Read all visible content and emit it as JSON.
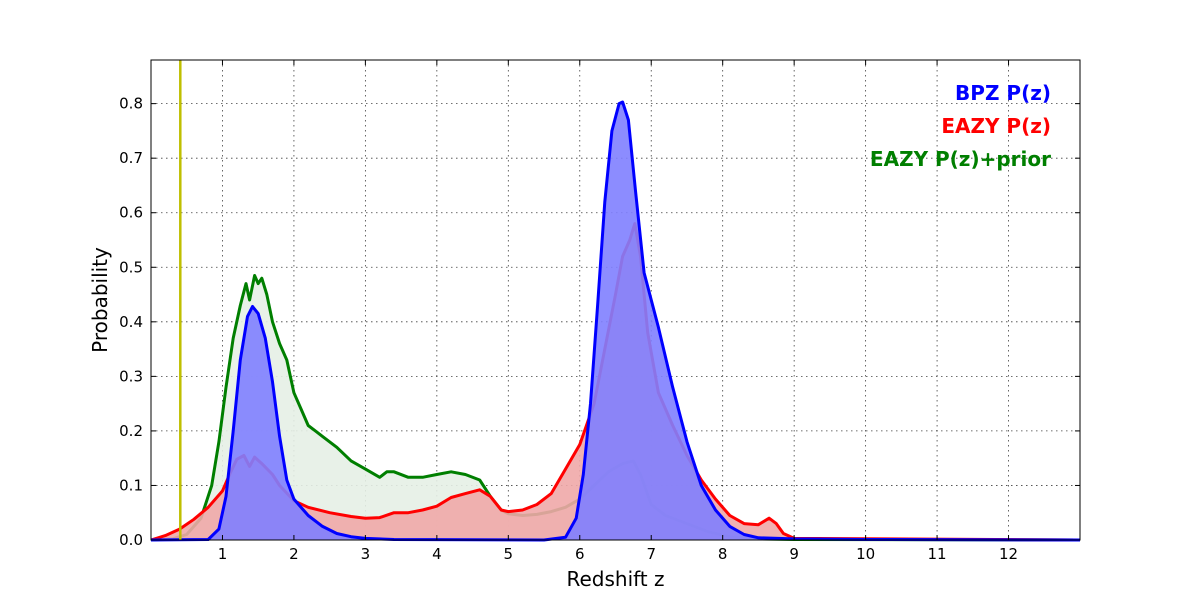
{
  "chart_data": {
    "type": "area",
    "xlabel": "Redshift z",
    "ylabel": "Probability",
    "xlim": [
      0,
      13
    ],
    "ylim": [
      0,
      0.88
    ],
    "x_ticks": [
      1,
      2,
      3,
      4,
      5,
      6,
      7,
      8,
      9,
      10,
      11,
      12
    ],
    "y_ticks": [
      0.0,
      0.1,
      0.2,
      0.3,
      0.4,
      0.5,
      0.6,
      0.7,
      0.8
    ],
    "grid": true,
    "legend_position": "top-right",
    "vline": {
      "x": 0.41,
      "color": "#bfbf00"
    },
    "series": [
      {
        "name": "EAZY P(z)+prior",
        "color": "#007f00",
        "fill": "#e5f0e5",
        "points": [
          [
            0,
            0
          ],
          [
            0.3,
            0.002
          ],
          [
            0.5,
            0.01
          ],
          [
            0.7,
            0.04
          ],
          [
            0.85,
            0.1
          ],
          [
            0.95,
            0.18
          ],
          [
            1.05,
            0.28
          ],
          [
            1.15,
            0.37
          ],
          [
            1.25,
            0.43
          ],
          [
            1.33,
            0.47
          ],
          [
            1.38,
            0.44
          ],
          [
            1.45,
            0.485
          ],
          [
            1.5,
            0.47
          ],
          [
            1.55,
            0.48
          ],
          [
            1.62,
            0.45
          ],
          [
            1.7,
            0.4
          ],
          [
            1.8,
            0.36
          ],
          [
            1.9,
            0.33
          ],
          [
            2.0,
            0.27
          ],
          [
            2.1,
            0.24
          ],
          [
            2.2,
            0.21
          ],
          [
            2.3,
            0.2
          ],
          [
            2.4,
            0.19
          ],
          [
            2.6,
            0.17
          ],
          [
            2.8,
            0.145
          ],
          [
            3.0,
            0.13
          ],
          [
            3.2,
            0.115
          ],
          [
            3.3,
            0.125
          ],
          [
            3.4,
            0.125
          ],
          [
            3.6,
            0.115
          ],
          [
            3.8,
            0.115
          ],
          [
            4.0,
            0.12
          ],
          [
            4.2,
            0.125
          ],
          [
            4.4,
            0.12
          ],
          [
            4.6,
            0.11
          ],
          [
            4.75,
            0.08
          ],
          [
            4.9,
            0.055
          ],
          [
            5.0,
            0.048
          ],
          [
            5.2,
            0.045
          ],
          [
            5.4,
            0.047
          ],
          [
            5.6,
            0.052
          ],
          [
            5.8,
            0.06
          ],
          [
            6.0,
            0.075
          ],
          [
            6.2,
            0.1
          ],
          [
            6.4,
            0.125
          ],
          [
            6.6,
            0.14
          ],
          [
            6.75,
            0.145
          ],
          [
            6.85,
            0.12
          ],
          [
            7.0,
            0.065
          ],
          [
            7.2,
            0.045
          ],
          [
            7.5,
            0.03
          ],
          [
            7.8,
            0.015
          ],
          [
            8.1,
            0.006
          ],
          [
            8.5,
            0.002
          ],
          [
            9.0,
            0.001
          ],
          [
            13,
            0
          ]
        ]
      },
      {
        "name": "EAZY P(z)",
        "color": "#ff0000",
        "fill": "#f0a8a8",
        "points": [
          [
            0,
            0
          ],
          [
            0.2,
            0.008
          ],
          [
            0.4,
            0.02
          ],
          [
            0.6,
            0.038
          ],
          [
            0.8,
            0.06
          ],
          [
            1.0,
            0.09
          ],
          [
            1.1,
            0.12
          ],
          [
            1.2,
            0.148
          ],
          [
            1.3,
            0.155
          ],
          [
            1.38,
            0.135
          ],
          [
            1.45,
            0.152
          ],
          [
            1.55,
            0.14
          ],
          [
            1.7,
            0.12
          ],
          [
            1.8,
            0.1
          ],
          [
            2.0,
            0.072
          ],
          [
            2.2,
            0.06
          ],
          [
            2.5,
            0.05
          ],
          [
            2.8,
            0.043
          ],
          [
            3.0,
            0.04
          ],
          [
            3.2,
            0.041
          ],
          [
            3.4,
            0.05
          ],
          [
            3.6,
            0.05
          ],
          [
            3.8,
            0.055
          ],
          [
            4.0,
            0.062
          ],
          [
            4.2,
            0.078
          ],
          [
            4.4,
            0.085
          ],
          [
            4.6,
            0.092
          ],
          [
            4.75,
            0.08
          ],
          [
            4.9,
            0.055
          ],
          [
            5.0,
            0.052
          ],
          [
            5.2,
            0.055
          ],
          [
            5.4,
            0.065
          ],
          [
            5.6,
            0.085
          ],
          [
            5.8,
            0.13
          ],
          [
            6.0,
            0.175
          ],
          [
            6.2,
            0.25
          ],
          [
            6.35,
            0.35
          ],
          [
            6.5,
            0.45
          ],
          [
            6.6,
            0.52
          ],
          [
            6.7,
            0.55
          ],
          [
            6.77,
            0.58
          ],
          [
            6.85,
            0.52
          ],
          [
            6.95,
            0.38
          ],
          [
            7.1,
            0.27
          ],
          [
            7.3,
            0.21
          ],
          [
            7.5,
            0.155
          ],
          [
            7.7,
            0.11
          ],
          [
            7.9,
            0.075
          ],
          [
            8.1,
            0.045
          ],
          [
            8.3,
            0.03
          ],
          [
            8.5,
            0.028
          ],
          [
            8.65,
            0.04
          ],
          [
            8.75,
            0.03
          ],
          [
            8.85,
            0.012
          ],
          [
            9.0,
            0.003
          ],
          [
            13,
            0
          ]
        ]
      },
      {
        "name": "BPZ P(z)",
        "color": "#0000ff",
        "fill": "#7f7fff",
        "points": [
          [
            0,
            0
          ],
          [
            0.8,
            0.001
          ],
          [
            0.95,
            0.02
          ],
          [
            1.05,
            0.08
          ],
          [
            1.15,
            0.2
          ],
          [
            1.25,
            0.33
          ],
          [
            1.35,
            0.41
          ],
          [
            1.42,
            0.428
          ],
          [
            1.5,
            0.415
          ],
          [
            1.6,
            0.37
          ],
          [
            1.7,
            0.29
          ],
          [
            1.8,
            0.19
          ],
          [
            1.9,
            0.11
          ],
          [
            2.0,
            0.075
          ],
          [
            2.2,
            0.045
          ],
          [
            2.4,
            0.025
          ],
          [
            2.6,
            0.012
          ],
          [
            2.8,
            0.006
          ],
          [
            3.0,
            0.003
          ],
          [
            3.4,
            0.001
          ],
          [
            5.5,
            0
          ],
          [
            5.8,
            0.005
          ],
          [
            5.95,
            0.04
          ],
          [
            6.05,
            0.12
          ],
          [
            6.15,
            0.25
          ],
          [
            6.25,
            0.43
          ],
          [
            6.35,
            0.62
          ],
          [
            6.45,
            0.75
          ],
          [
            6.55,
            0.8
          ],
          [
            6.6,
            0.803
          ],
          [
            6.68,
            0.77
          ],
          [
            6.78,
            0.64
          ],
          [
            6.9,
            0.49
          ],
          [
            7.1,
            0.39
          ],
          [
            7.3,
            0.28
          ],
          [
            7.5,
            0.18
          ],
          [
            7.7,
            0.1
          ],
          [
            7.9,
            0.055
          ],
          [
            8.1,
            0.025
          ],
          [
            8.3,
            0.01
          ],
          [
            8.5,
            0.004
          ],
          [
            9.0,
            0.002
          ],
          [
            10,
            0.001
          ],
          [
            13,
            0
          ]
        ]
      }
    ],
    "legend": [
      {
        "label": "BPZ P(z)",
        "color": "#0000ff"
      },
      {
        "label": "EAZY P(z)",
        "color": "#ff0000"
      },
      {
        "label": "EAZY P(z)+prior",
        "color": "#007f00"
      }
    ]
  }
}
